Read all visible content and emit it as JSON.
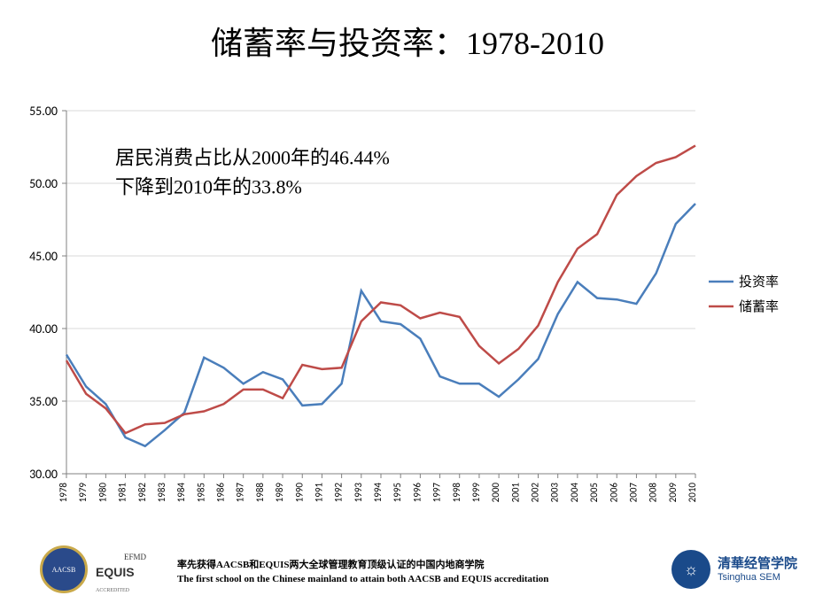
{
  "title": "储蓄率与投资率：1978-2010",
  "annotation": {
    "line1": "居民消费占比从2000年的46.44%",
    "line2": "下降到2010年的33.8%"
  },
  "chart": {
    "type": "line",
    "background_color": "#ffffff",
    "plot_border_color": "#808080",
    "grid_color": "#d9d9d9",
    "ylim": [
      30.0,
      55.0
    ],
    "ytick_step": 5.0,
    "yticks": [
      "30.00",
      "35.00",
      "40.00",
      "45.00",
      "50.00",
      "55.00"
    ],
    "ytick_fontsize": 14,
    "ytick_color": "#000000",
    "xticks": [
      "1978",
      "1979",
      "1980",
      "1981",
      "1982",
      "1983",
      "1984",
      "1985",
      "1986",
      "1987",
      "1988",
      "1989",
      "1990",
      "1991",
      "1992",
      "1993",
      "1994",
      "1995",
      "1996",
      "1997",
      "1998",
      "1999",
      "2000",
      "2001",
      "2002",
      "2003",
      "2004",
      "2005",
      "2006",
      "2007",
      "2008",
      "2009",
      "2010"
    ],
    "xtick_fontsize": 11,
    "xtick_color": "#000000",
    "series": [
      {
        "name": "投资率",
        "color": "#4a7ebb",
        "line_width": 2.5,
        "data": [
          38.2,
          36.0,
          34.8,
          32.5,
          31.9,
          33.0,
          34.2,
          38.0,
          37.3,
          36.2,
          37.0,
          36.5,
          34.7,
          34.8,
          36.2,
          42.6,
          40.5,
          40.3,
          39.3,
          36.7,
          36.2,
          36.2,
          35.3,
          36.5,
          37.9,
          41.0,
          43.2,
          42.1,
          42.0,
          41.7,
          43.8,
          47.2,
          48.6
        ]
      },
      {
        "name": "储蓄率",
        "color": "#be4b48",
        "line_width": 2.5,
        "data": [
          37.8,
          35.5,
          34.5,
          32.8,
          33.4,
          33.5,
          34.1,
          34.3,
          34.8,
          35.8,
          35.8,
          35.2,
          37.5,
          37.2,
          37.3,
          40.5,
          41.8,
          41.6,
          40.7,
          41.1,
          40.8,
          38.8,
          37.6,
          38.6,
          40.2,
          43.2,
          45.5,
          46.5,
          49.2,
          50.5,
          51.4,
          51.8,
          52.6
        ]
      }
    ],
    "legend": {
      "position": "right",
      "fontsize": 15,
      "text_color": "#000000"
    }
  },
  "footer": {
    "cn_text": "率先获得AACSB和EQUIS两大全球管理教育顶级认证的中国内地商学院",
    "en_text": "The first school on the Chinese  mainland to attain both AACSB and EQUIS accreditation",
    "aacsb_label": "AACSB",
    "equis_label": "EQUIS",
    "efmd_label": "EFMD",
    "tsinghua_cn": "清華经管学院",
    "tsinghua_en": "Tsinghua SEM",
    "aacsb_color": "#2a4a8a",
    "tsinghua_color": "#1a4a8a",
    "equis_color": "#8a4a2a"
  }
}
